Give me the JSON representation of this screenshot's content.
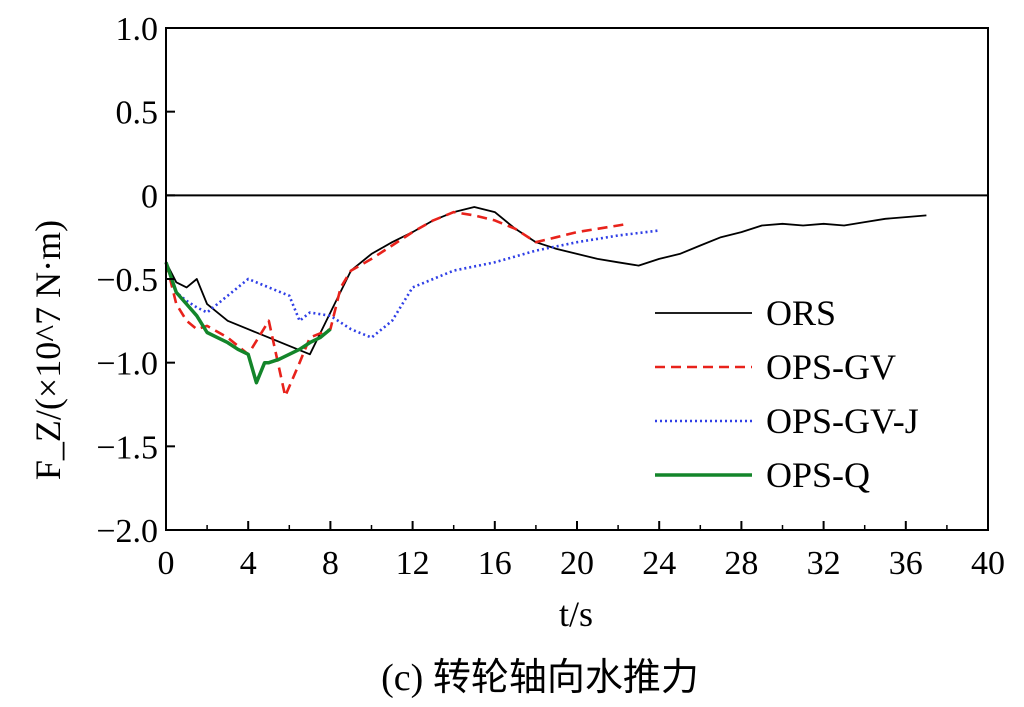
{
  "chart_data": {
    "type": "line",
    "caption": "(c) 转轮轴向水推力",
    "xlabel": "t/s",
    "ylabel": "F_Z/(×10^7 N·m)",
    "xlim": [
      0,
      40
    ],
    "ylim": [
      -2.0,
      1.0
    ],
    "xticks": [
      "0",
      "4",
      "8",
      "12",
      "16",
      "20",
      "24",
      "28",
      "32",
      "36",
      "40"
    ],
    "yticks": [
      "1.0",
      "0.5",
      "0",
      "−0.5",
      "−1.0",
      "−1.5",
      "−2.0"
    ],
    "legend_position": "right",
    "series": [
      {
        "name": "ORS",
        "color": "#000000",
        "style": "solid",
        "x": [
          0,
          0.5,
          1,
          1.5,
          2,
          3,
          4,
          5,
          6,
          7,
          8,
          9,
          10,
          11,
          12,
          13,
          14,
          15,
          16,
          17,
          18,
          19,
          20,
          21,
          22,
          23,
          24,
          25,
          26,
          27,
          28,
          29,
          30,
          31,
          32,
          33,
          34,
          35,
          36,
          37
        ],
        "y": [
          -0.4,
          -0.52,
          -0.55,
          -0.5,
          -0.65,
          -0.75,
          -0.8,
          -0.85,
          -0.9,
          -0.95,
          -0.7,
          -0.45,
          -0.35,
          -0.28,
          -0.22,
          -0.15,
          -0.1,
          -0.07,
          -0.1,
          -0.2,
          -0.28,
          -0.32,
          -0.35,
          -0.38,
          -0.4,
          -0.42,
          -0.38,
          -0.35,
          -0.3,
          -0.25,
          -0.22,
          -0.18,
          -0.17,
          -0.18,
          -0.17,
          -0.18,
          -0.16,
          -0.14,
          -0.13,
          -0.12
        ]
      },
      {
        "name": "OPS-GV",
        "color": "#e8221b",
        "style": "dashed",
        "x": [
          0,
          0.5,
          1,
          1.5,
          2,
          3,
          4,
          5,
          5.8,
          6.5,
          7,
          8,
          8.5,
          9,
          10,
          11,
          12,
          13,
          14,
          15,
          16,
          17,
          18,
          19,
          20,
          21,
          22,
          22.5
        ],
        "y": [
          -0.4,
          -0.65,
          -0.75,
          -0.8,
          -0.78,
          -0.85,
          -0.95,
          -0.75,
          -1.2,
          -1.0,
          -0.85,
          -0.8,
          -0.55,
          -0.45,
          -0.38,
          -0.3,
          -0.22,
          -0.15,
          -0.1,
          -0.12,
          -0.15,
          -0.2,
          -0.28,
          -0.25,
          -0.22,
          -0.2,
          -0.18,
          -0.17
        ]
      },
      {
        "name": "OPS-GV-J",
        "color": "#2f3fe6",
        "style": "dotted",
        "x": [
          0,
          0.5,
          1,
          1.5,
          2,
          3,
          4,
          5,
          6,
          6.5,
          7,
          8,
          9,
          10,
          11,
          12,
          13,
          14,
          16,
          18,
          20,
          22,
          24
        ],
        "y": [
          -0.4,
          -0.58,
          -0.63,
          -0.67,
          -0.7,
          -0.6,
          -0.5,
          -0.55,
          -0.6,
          -0.75,
          -0.7,
          -0.72,
          -0.8,
          -0.85,
          -0.75,
          -0.55,
          -0.5,
          -0.45,
          -0.4,
          -0.33,
          -0.28,
          -0.24,
          -0.21
        ]
      },
      {
        "name": "OPS-Q",
        "color": "#13852a",
        "style": "solid",
        "x": [
          0,
          0.5,
          1,
          1.5,
          2,
          2.5,
          3,
          3.5,
          4,
          4.4,
          4.8,
          5,
          5.5,
          6,
          6.5,
          7,
          7.5,
          8
        ],
        "y": [
          -0.4,
          -0.58,
          -0.65,
          -0.72,
          -0.82,
          -0.85,
          -0.88,
          -0.92,
          -0.95,
          -1.12,
          -1.0,
          -1.0,
          -0.98,
          -0.95,
          -0.92,
          -0.88,
          -0.85,
          -0.8
        ]
      }
    ]
  }
}
